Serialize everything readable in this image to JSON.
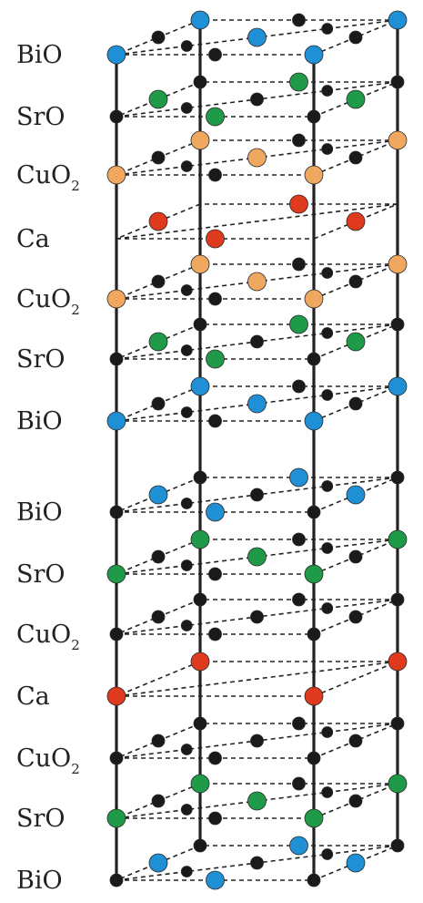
{
  "layers": [
    {
      "label": "BiO",
      "sub": ""
    },
    {
      "label": "SrO",
      "sub": ""
    },
    {
      "label": "CuO",
      "sub": "2"
    },
    {
      "label": "Ca",
      "sub": ""
    },
    {
      "label": "CuO",
      "sub": "2"
    },
    {
      "label": "SrO",
      "sub": ""
    },
    {
      "label": "BiO",
      "sub": ""
    },
    {
      "label": "BiO",
      "sub": ""
    },
    {
      "label": "SrO",
      "sub": ""
    },
    {
      "label": "CuO",
      "sub": "2"
    },
    {
      "label": "Ca",
      "sub": ""
    },
    {
      "label": "CuO",
      "sub": "2"
    },
    {
      "label": "SrO",
      "sub": ""
    },
    {
      "label": "BiO",
      "sub": ""
    }
  ],
  "element_colors": {
    "Bi": "#1f8fd6",
    "Sr": "#1f9a48",
    "Cu": "#f0a860",
    "Ca": "#e03a1e",
    "O": "#1a1a1a"
  }
}
